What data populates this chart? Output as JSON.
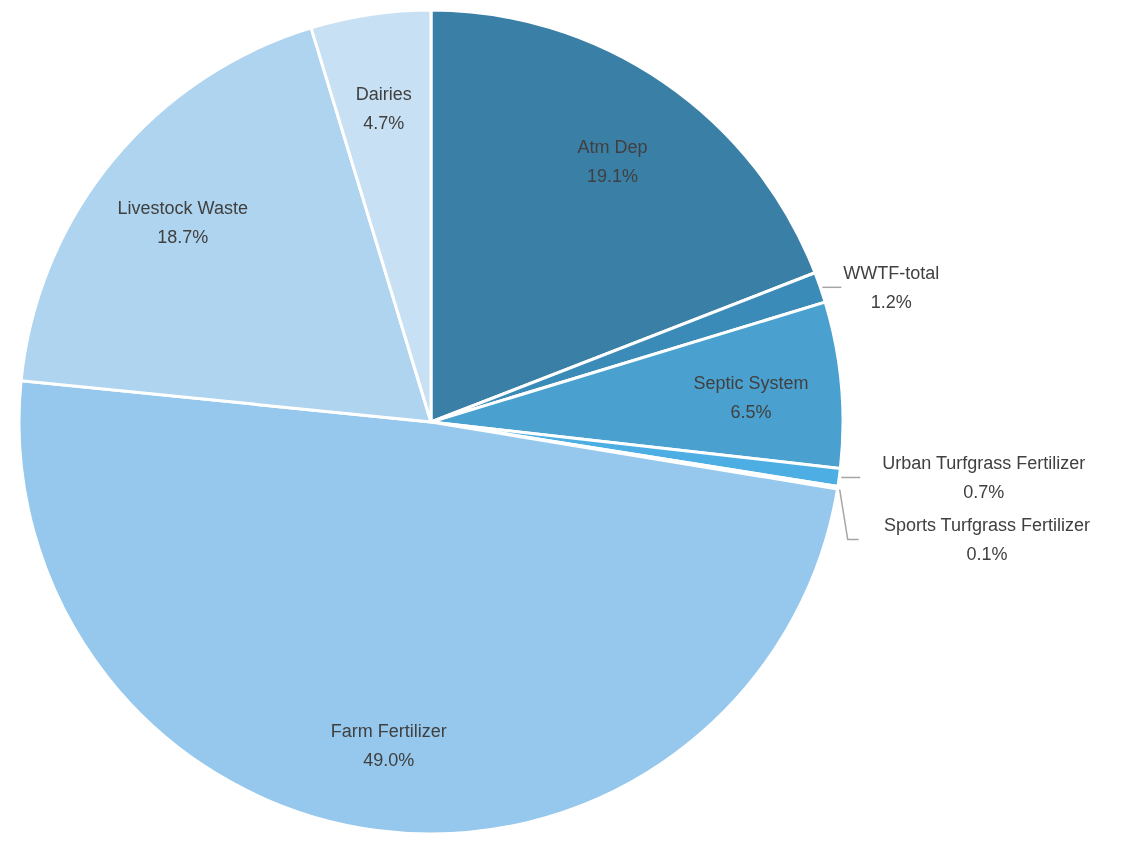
{
  "chart_data": {
    "type": "pie",
    "categories": [
      "Atm Dep",
      "WWTF-total",
      "Septic System",
      "Urban Turfgrass Fertilizer",
      "Sports Turfgrass Fertilizer",
      "Farm Fertilizer",
      "Livestock Waste",
      "Dairies"
    ],
    "values": [
      19.1,
      1.2,
      6.5,
      0.7,
      0.1,
      49.0,
      18.7,
      4.7
    ],
    "value_labels": [
      "19.1%",
      "1.2%",
      "6.5%",
      "0.7%",
      "0.1%",
      "49.0%",
      "18.7%",
      "4.7%"
    ],
    "colors": [
      "#3a7fa5",
      "#3b8bb8",
      "#4aa1cf",
      "#4daee3",
      "#5bb5e6",
      "#95c8ec",
      "#afd4ef",
      "#c8e0f4"
    ]
  }
}
